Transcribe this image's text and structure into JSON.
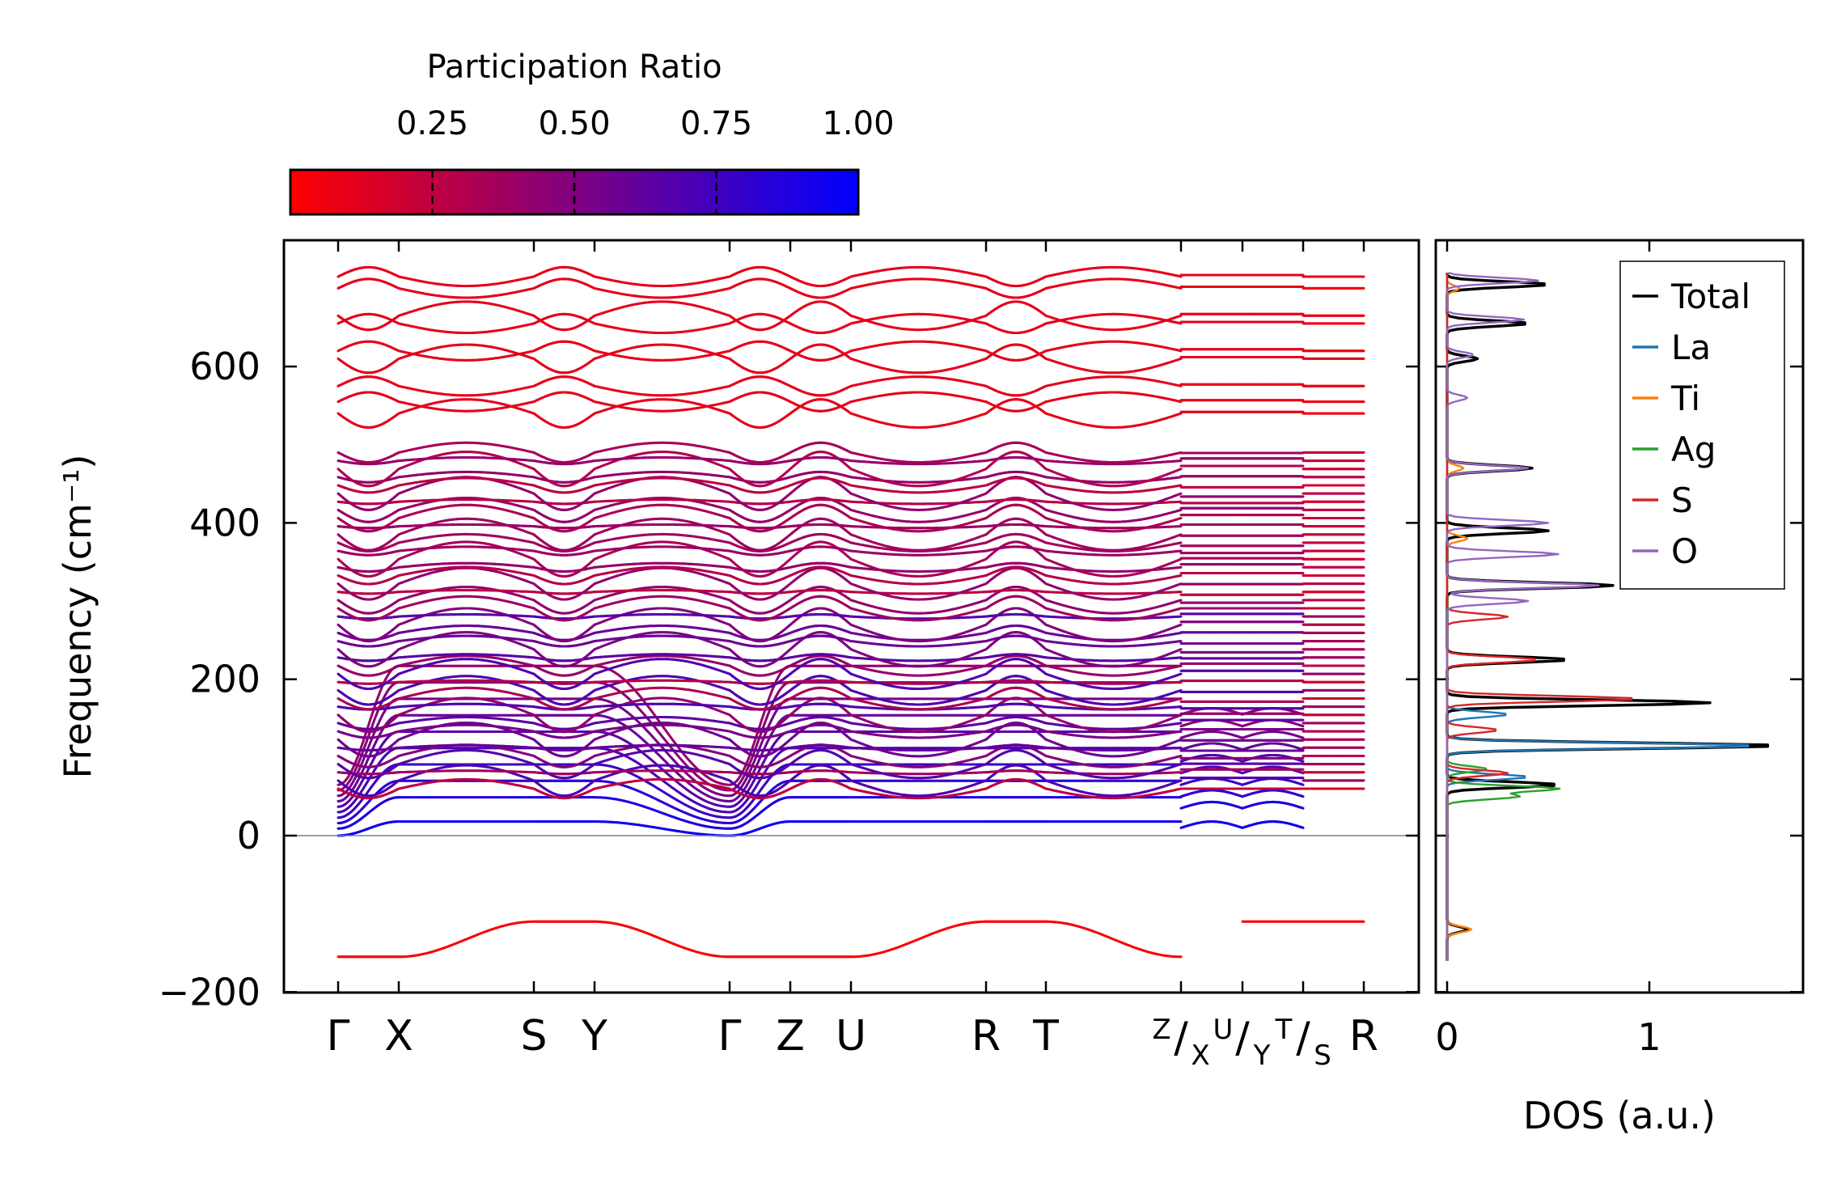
{
  "chart_data": [
    {
      "type": "line",
      "subtype": "phonon-band-structure",
      "title": "",
      "xlabel": "",
      "ylabel": "Frequency (cm⁻¹)",
      "ylim": [
        -200,
        760
      ],
      "yticks": [
        -200,
        0,
        200,
        400,
        600
      ],
      "ytick_labels": [
        "−200",
        "0",
        "200",
        "400",
        "600"
      ],
      "kpoint_labels": [
        "Γ",
        "X",
        "S",
        "Y",
        "Γ",
        "Z",
        "U",
        "R",
        "T"
      ],
      "segment_labels": [
        {
          "upper": "Z",
          "lower": "X"
        },
        {
          "upper": "U",
          "lower": "Y"
        },
        {
          "upper": "T",
          "lower": "S"
        }
      ],
      "last_label": "R",
      "zero_line": 0,
      "colorbar": {
        "title": "Participation Ratio",
        "ticks": [
          0.25,
          0.5,
          0.75,
          1.0
        ],
        "tick_labels": [
          "0.25",
          "0.50",
          "0.75",
          "1.00"
        ],
        "range": [
          0.0,
          1.0
        ],
        "color_low": "#ff0000",
        "color_high": "#0000ff"
      },
      "bands": {
        "imaginary_mode": {
          "edge_value": -155,
          "mid_value": -110
        },
        "acoustic_low_pr_approx_frequencies": [
          0,
          25,
          40,
          55,
          70,
          85,
          100,
          115,
          130,
          145
        ],
        "optical_cluster_range": [
          60,
          490
        ],
        "high_frequency_bands": [
          540,
          555,
          575,
          610,
          620,
          655,
          665,
          700,
          715
        ]
      }
    },
    {
      "type": "line",
      "subtype": "density-of-states",
      "xlabel": "DOS (a.u.)",
      "ylabel": "",
      "xlim": [
        0,
        1.75
      ],
      "xticks": [
        0,
        1
      ],
      "xtick_labels": [
        "0",
        "1"
      ],
      "legend_position": "top-right",
      "series": [
        {
          "name": "Total",
          "color": "#000000",
          "peaks": [
            {
              "f": 705,
              "v": 0.5
            },
            {
              "f": 655,
              "v": 0.4
            },
            {
              "f": 610,
              "v": 0.15
            },
            {
              "f": 470,
              "v": 0.42
            },
            {
              "f": 390,
              "v": 0.5
            },
            {
              "f": 320,
              "v": 0.82
            },
            {
              "f": 225,
              "v": 0.6
            },
            {
              "f": 170,
              "v": 1.3
            },
            {
              "f": 115,
              "v": 1.65
            },
            {
              "f": 65,
              "v": 0.55
            },
            {
              "f": -120,
              "v": 0.1
            }
          ]
        },
        {
          "name": "La",
          "color": "#1f77b4",
          "peaks": [
            {
              "f": 155,
              "v": 0.3
            },
            {
              "f": 115,
              "v": 1.55
            },
            {
              "f": 75,
              "v": 0.4
            }
          ]
        },
        {
          "name": "Ti",
          "color": "#ff7f0e",
          "peaks": [
            {
              "f": 700,
              "v": 0.06
            },
            {
              "f": 470,
              "v": 0.08
            },
            {
              "f": 380,
              "v": 0.1
            },
            {
              "f": -120,
              "v": 0.12
            }
          ]
        },
        {
          "name": "Ag",
          "color": "#2ca02c",
          "peaks": [
            {
              "f": 85,
              "v": 0.2
            },
            {
              "f": 60,
              "v": 0.55
            },
            {
              "f": 50,
              "v": 0.35
            }
          ]
        },
        {
          "name": "S",
          "color": "#d62728",
          "peaks": [
            {
              "f": 280,
              "v": 0.3
            },
            {
              "f": 225,
              "v": 0.45
            },
            {
              "f": 175,
              "v": 0.95
            },
            {
              "f": 135,
              "v": 0.25
            },
            {
              "f": 80,
              "v": 0.3
            }
          ]
        },
        {
          "name": "O",
          "color": "#9467bd",
          "peaks": [
            {
              "f": 710,
              "v": 0.45
            },
            {
              "f": 660,
              "v": 0.38
            },
            {
              "f": 615,
              "v": 0.13
            },
            {
              "f": 560,
              "v": 0.1
            },
            {
              "f": 470,
              "v": 0.4
            },
            {
              "f": 400,
              "v": 0.5
            },
            {
              "f": 360,
              "v": 0.55
            },
            {
              "f": 320,
              "v": 0.75
            },
            {
              "f": 300,
              "v": 0.4
            }
          ]
        }
      ]
    }
  ]
}
